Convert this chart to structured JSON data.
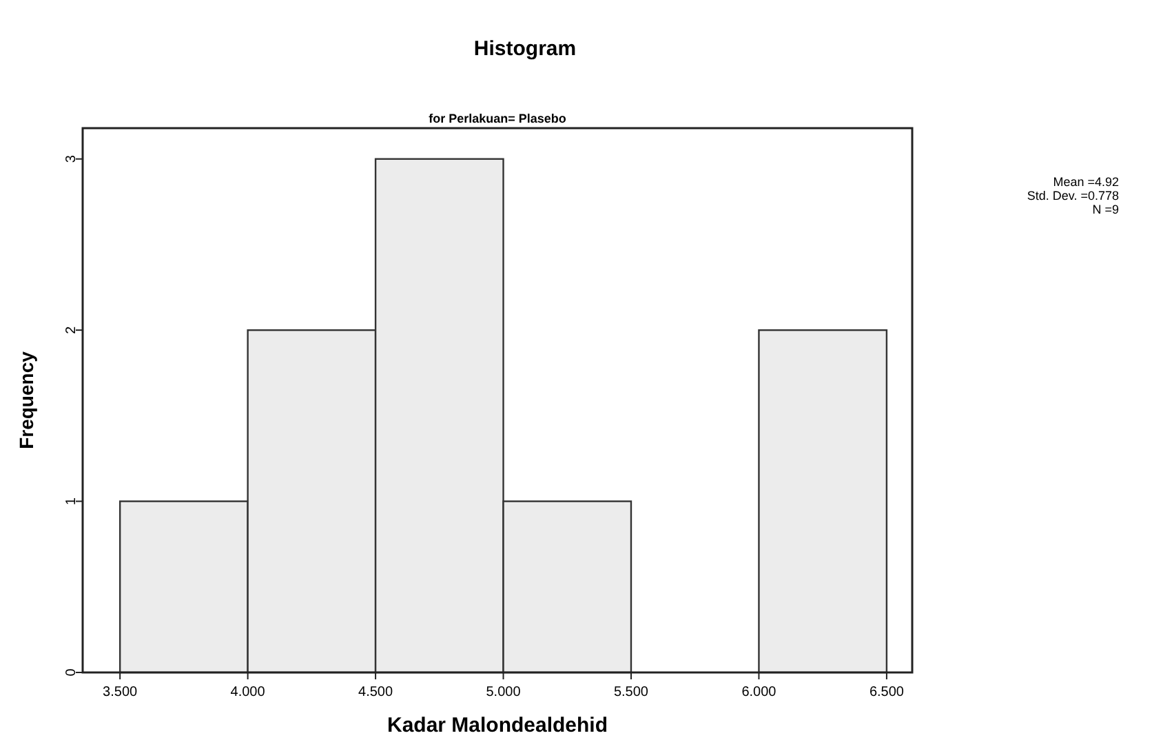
{
  "chart_data": {
    "type": "histogram",
    "title": "Histogram",
    "subtitle": "for Perlakuan= Plasebo",
    "xlabel": "Kadar Malondealdehid",
    "ylabel": "Frequency",
    "bins": [
      3.5,
      4,
      4.5,
      5,
      5.5,
      6,
      6.5
    ],
    "values": [
      1,
      2,
      3,
      1,
      0,
      2
    ],
    "color": "#ececec",
    "xlim": [
      3.354,
      6.6
    ],
    "ylim": [
      0,
      3.18
    ],
    "xticks": [
      {
        "value": 3.5,
        "label": "3.500"
      },
      {
        "value": 4,
        "label": "4.000"
      },
      {
        "value": 4.5,
        "label": "4.500"
      },
      {
        "value": 5,
        "label": "5.000"
      },
      {
        "value": 5.5,
        "label": "5.500"
      },
      {
        "value": 6,
        "label": "6.000"
      },
      {
        "value": 6.5,
        "label": "6.500"
      }
    ],
    "yticks": [
      0,
      1,
      2,
      3
    ],
    "annotations": [
      "Mean =4.92",
      "Std. Dev. =0.778",
      "N =9"
    ],
    "grid": false
  }
}
